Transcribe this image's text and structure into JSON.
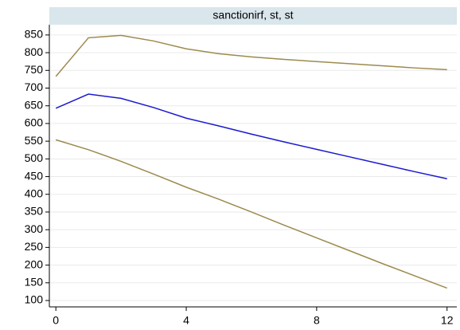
{
  "chart_data": {
    "type": "line",
    "title": "sanctionirf, st, st",
    "x": [
      0,
      1,
      2,
      3,
      4,
      5,
      6,
      7,
      8,
      9,
      10,
      11,
      12
    ],
    "series": [
      {
        "color": "#9c8a4e",
        "values": [
          733,
          842,
          849,
          833,
          811,
          797,
          788,
          781,
          775,
          769,
          763,
          757,
          752
        ]
      },
      {
        "color": "#1a1ad0",
        "values": [
          643,
          683,
          671,
          645,
          615,
          593,
          570,
          548,
          527,
          506,
          485,
          464,
          444
        ]
      },
      {
        "color": "#9c8a4e",
        "values": [
          554,
          526,
          493,
          457,
          420,
          386,
          350,
          313,
          277,
          241,
          205,
          170,
          135
        ]
      }
    ],
    "xlim": [
      -0.2,
      12.3
    ],
    "xticks": [
      0,
      4,
      8,
      12
    ],
    "ylim": [
      82,
      879
    ],
    "yticks": [
      100,
      150,
      200,
      250,
      300,
      350,
      400,
      450,
      500,
      550,
      600,
      650,
      700,
      750,
      800,
      850
    ],
    "grid": true
  }
}
